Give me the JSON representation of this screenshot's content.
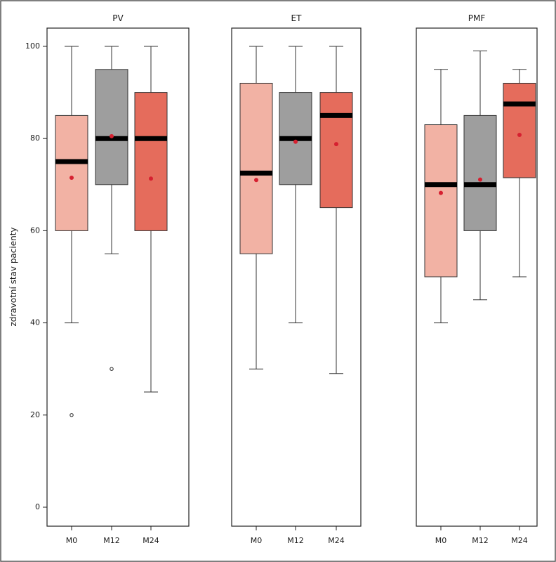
{
  "chart_data": {
    "type": "boxplot",
    "ylabel": "zdravotní stav pacienty",
    "ylim": [
      -4,
      104
    ],
    "yticks": [
      0,
      20,
      40,
      60,
      80,
      100
    ],
    "categories": [
      "M0",
      "M12",
      "M24"
    ],
    "colors": {
      "M0": "#f2b2a4",
      "M12": "#9e9e9e",
      "M24": "#e56c5c"
    },
    "mean_color": "#d62030",
    "panels": [
      {
        "title": "PV",
        "boxes": [
          {
            "category": "M0",
            "whisker_low": 40,
            "q1": 60,
            "median": 75,
            "q3": 85,
            "whisker_high": 100,
            "mean": 71.5,
            "outliers": [
              20
            ]
          },
          {
            "category": "M12",
            "whisker_low": 55,
            "q1": 70,
            "median": 80,
            "q3": 95,
            "whisker_high": 100,
            "mean": 80.5,
            "outliers": [
              30
            ]
          },
          {
            "category": "M24",
            "whisker_low": 25,
            "q1": 60,
            "median": 80,
            "q3": 90,
            "whisker_high": 100,
            "mean": 71.3,
            "outliers": []
          }
        ]
      },
      {
        "title": "ET",
        "boxes": [
          {
            "category": "M0",
            "whisker_low": 30,
            "q1": 55,
            "median": 72.5,
            "q3": 92,
            "whisker_high": 100,
            "mean": 71,
            "outliers": []
          },
          {
            "category": "M12",
            "whisker_low": 40,
            "q1": 70,
            "median": 80,
            "q3": 90,
            "whisker_high": 100,
            "mean": 79.3,
            "outliers": []
          },
          {
            "category": "M24",
            "whisker_low": 29,
            "q1": 65,
            "median": 85,
            "q3": 90,
            "whisker_high": 100,
            "mean": 78.8,
            "outliers": []
          }
        ]
      },
      {
        "title": "PMF",
        "boxes": [
          {
            "category": "M0",
            "whisker_low": 40,
            "q1": 50,
            "median": 70,
            "q3": 83,
            "whisker_high": 95,
            "mean": 68.2,
            "outliers": []
          },
          {
            "category": "M12",
            "whisker_low": 45,
            "q1": 60,
            "median": 70,
            "q3": 85,
            "whisker_high": 99,
            "mean": 71.1,
            "outliers": []
          },
          {
            "category": "M24",
            "whisker_low": 50,
            "q1": 71.5,
            "median": 87.5,
            "q3": 92,
            "whisker_high": 95,
            "mean": 80.8,
            "outliers": []
          }
        ]
      }
    ]
  }
}
